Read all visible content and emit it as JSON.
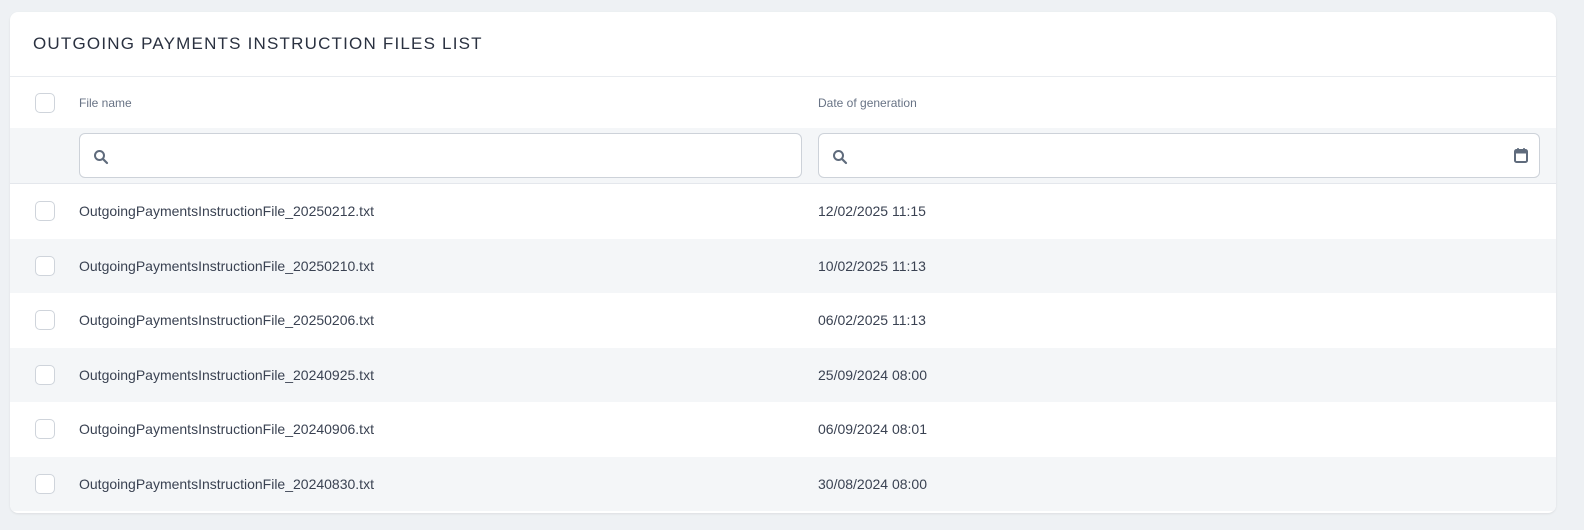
{
  "title": "OUTGOING PAYMENTS INSTRUCTION FILES LIST",
  "columns": {
    "file_name": "File name",
    "date": "Date of generation"
  },
  "filters": {
    "file_name_value": "",
    "date_value": ""
  },
  "rows": [
    {
      "file": "OutgoingPaymentsInstructionFile_20250212.txt",
      "date": "12/02/2025 11:15"
    },
    {
      "file": "OutgoingPaymentsInstructionFile_20250210.txt",
      "date": "10/02/2025 11:13"
    },
    {
      "file": "OutgoingPaymentsInstructionFile_20250206.txt",
      "date": "06/02/2025 11:13"
    },
    {
      "file": "OutgoingPaymentsInstructionFile_20240925.txt",
      "date": "25/09/2024 08:00"
    },
    {
      "file": "OutgoingPaymentsInstructionFile_20240906.txt",
      "date": "06/09/2024 08:01"
    },
    {
      "file": "OutgoingPaymentsInstructionFile_20240830.txt",
      "date": "30/08/2024 08:00"
    }
  ]
}
